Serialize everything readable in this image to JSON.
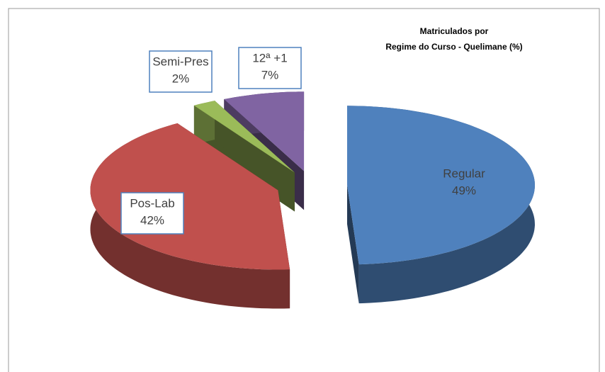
{
  "chart_data": {
    "type": "pie3d",
    "title": [
      "Matriculados por",
      "Regime do Curso - Quelimane (%)"
    ],
    "categories": [
      "Regular",
      "Pos-Lab",
      "Semi-Pres",
      "12ª +1"
    ],
    "values": [
      49,
      42,
      2,
      7
    ],
    "value_labels": [
      "49%",
      "42%",
      "2%",
      "7%"
    ],
    "colors": [
      "#4f81bd",
      "#c0504d",
      "#9bbb59",
      "#8064a2"
    ]
  }
}
